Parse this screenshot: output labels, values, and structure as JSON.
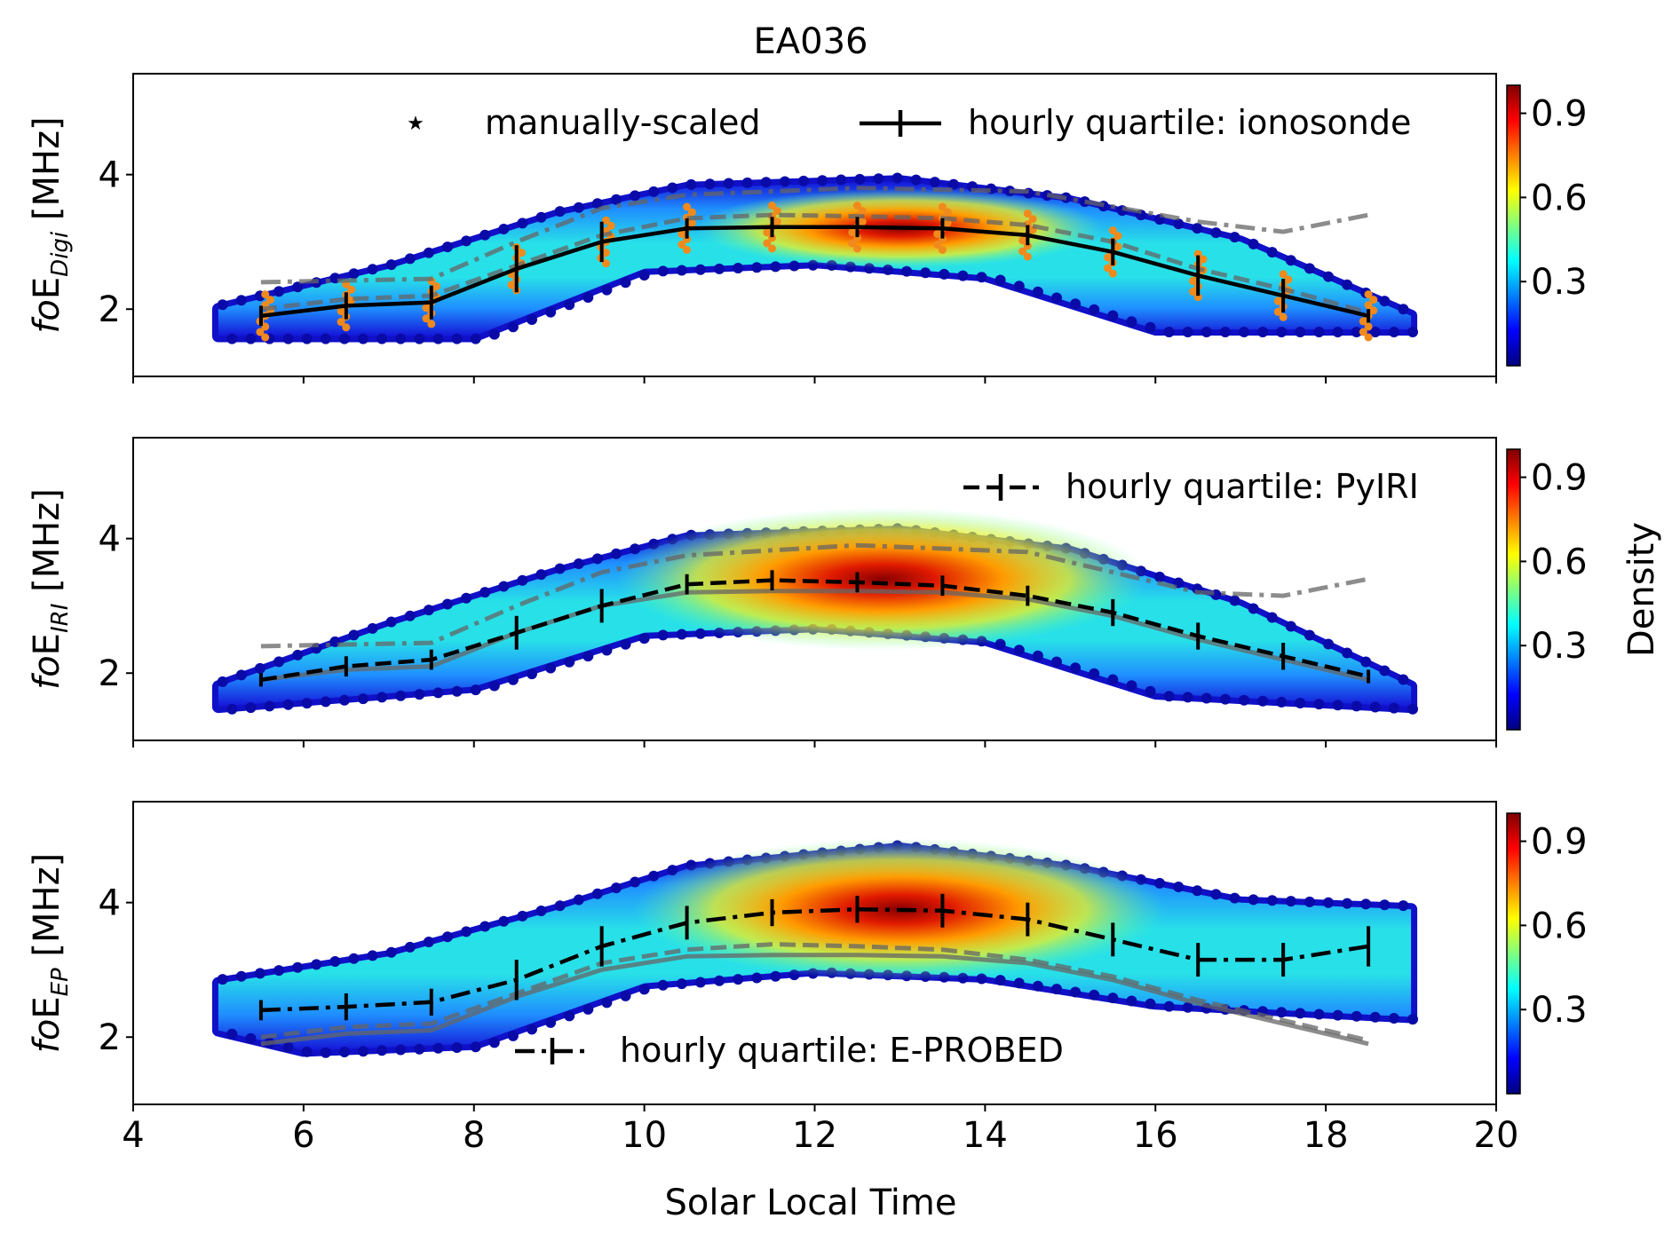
{
  "figure": {
    "title": "EA036",
    "xlabel": "Solar Local Time"
  },
  "colors": {
    "scatter_manual": "#f08a1c",
    "quartile_ionosonde": "#000000",
    "quartile_pyiri": "#000000",
    "quartile_eprobed": "#000000",
    "reference_gray": "#666666"
  },
  "chart_data": [
    {
      "type": "scatter",
      "panel": "top",
      "ylabel": "foE",
      "ylabel_subscript": "Digi",
      "ylabel_unit": "[MHz]",
      "xlim": [
        4,
        20
      ],
      "ylim": [
        1,
        5.5
      ],
      "xticks": [
        4,
        6,
        8,
        10,
        12,
        14,
        16,
        18,
        20
      ],
      "yticks": [
        2,
        4
      ],
      "colorbar": {
        "label": "",
        "ticks": [
          "0.3",
          "0.6",
          "0.9"
        ]
      },
      "legend": [
        "manually-scaled",
        "hourly quartile: ionosonde"
      ],
      "legend_position": "top",
      "series": [
        {
          "name": "hourly quartile: ionosonde",
          "style": "solid",
          "x": [
            5.5,
            6.5,
            7.5,
            8.5,
            9.5,
            10.5,
            11.5,
            12.5,
            13.5,
            14.5,
            15.5,
            16.5,
            17.5,
            18.5
          ],
          "y": [
            1.9,
            2.05,
            2.1,
            2.6,
            3.0,
            3.2,
            3.22,
            3.22,
            3.2,
            3.1,
            2.85,
            2.5,
            2.2,
            1.9
          ],
          "err": [
            0.15,
            0.2,
            0.25,
            0.35,
            0.3,
            0.15,
            0.15,
            0.15,
            0.15,
            0.15,
            0.2,
            0.3,
            0.25,
            0.1
          ]
        }
      ],
      "reference_curves": [
        {
          "style": "dashdot",
          "x": [
            5.5,
            7.5,
            8.5,
            9.5,
            10.5,
            12.5,
            14.5,
            16.5,
            17.5,
            18.5
          ],
          "y": [
            2.4,
            2.45,
            3.0,
            3.5,
            3.7,
            3.8,
            3.75,
            3.3,
            3.15,
            3.4
          ]
        },
        {
          "style": "dashed",
          "x": [
            5.5,
            6.5,
            7.5,
            8.5,
            9.5,
            10.5,
            11.5,
            12.5,
            13.5,
            14.5,
            15.5,
            16.5,
            17.5,
            18.5
          ],
          "y": [
            2.0,
            2.15,
            2.2,
            2.65,
            3.1,
            3.35,
            3.4,
            3.38,
            3.35,
            3.25,
            3.0,
            2.6,
            2.3,
            1.95
          ]
        }
      ],
      "density": {
        "lower": [
          [
            5.0,
            1.6
          ],
          [
            8.0,
            1.6
          ],
          [
            10.0,
            2.6
          ],
          [
            12.0,
            2.7
          ],
          [
            14.0,
            2.5
          ],
          [
            16.0,
            1.7
          ],
          [
            19.0,
            1.7
          ]
        ],
        "upper": [
          [
            5.0,
            2.0
          ],
          [
            7.0,
            2.6
          ],
          [
            9.0,
            3.4
          ],
          [
            10.5,
            3.8
          ],
          [
            13.0,
            3.9
          ],
          [
            15.0,
            3.6
          ],
          [
            17.0,
            3.0
          ],
          [
            19.0,
            1.9
          ]
        ],
        "peak": [
          13.0,
          3.2
        ]
      }
    },
    {
      "type": "scatter",
      "panel": "middle",
      "ylabel": "foE",
      "ylabel_subscript": "IRI",
      "ylabel_unit": "[MHz]",
      "xlim": [
        4,
        20
      ],
      "ylim": [
        1,
        5.5
      ],
      "xticks": [
        4,
        6,
        8,
        10,
        12,
        14,
        16,
        18,
        20
      ],
      "yticks": [
        2,
        4
      ],
      "colorbar": {
        "label": "Density",
        "ticks": [
          "0.3",
          "0.6",
          "0.9"
        ]
      },
      "legend": [
        "hourly quartile: PyIRI"
      ],
      "legend_position": "upper right",
      "series": [
        {
          "name": "hourly quartile: PyIRI",
          "style": "dashed",
          "x": [
            5.5,
            6.5,
            7.5,
            8.5,
            9.5,
            10.5,
            11.5,
            12.5,
            13.5,
            14.5,
            15.5,
            16.5,
            17.5,
            18.5
          ],
          "y": [
            1.9,
            2.1,
            2.2,
            2.6,
            3.0,
            3.32,
            3.38,
            3.35,
            3.3,
            3.15,
            2.9,
            2.55,
            2.25,
            1.95
          ],
          "err": [
            0.1,
            0.15,
            0.15,
            0.25,
            0.25,
            0.15,
            0.15,
            0.15,
            0.15,
            0.15,
            0.2,
            0.2,
            0.2,
            0.1
          ]
        }
      ],
      "reference_curves": [
        {
          "style": "dashdot",
          "x": [
            5.5,
            7.5,
            8.5,
            9.5,
            10.5,
            12.5,
            14.5,
            16.5,
            17.5,
            18.5
          ],
          "y": [
            2.4,
            2.45,
            3.0,
            3.5,
            3.75,
            3.9,
            3.8,
            3.2,
            3.15,
            3.4
          ]
        },
        {
          "style": "solid",
          "x": [
            5.5,
            6.5,
            7.5,
            8.5,
            9.5,
            10.5,
            11.5,
            12.5,
            13.5,
            14.5,
            15.5,
            16.5,
            17.5,
            18.5
          ],
          "y": [
            1.9,
            2.05,
            2.1,
            2.6,
            3.0,
            3.2,
            3.22,
            3.22,
            3.2,
            3.1,
            2.85,
            2.5,
            2.2,
            1.9
          ]
        }
      ],
      "density": {
        "lower": [
          [
            5.0,
            1.5
          ],
          [
            8.0,
            1.8
          ],
          [
            10.0,
            2.6
          ],
          [
            12.0,
            2.7
          ],
          [
            14.0,
            2.5
          ],
          [
            16.0,
            1.7
          ],
          [
            19.0,
            1.5
          ]
        ],
        "upper": [
          [
            5.0,
            1.8
          ],
          [
            7.0,
            2.7
          ],
          [
            9.0,
            3.5
          ],
          [
            10.5,
            4.0
          ],
          [
            13.0,
            4.1
          ],
          [
            15.0,
            3.8
          ],
          [
            17.0,
            3.0
          ],
          [
            19.0,
            1.8
          ]
        ],
        "peak": [
          12.8,
          3.4
        ]
      }
    },
    {
      "type": "scatter",
      "panel": "bottom",
      "ylabel": "foE",
      "ylabel_subscript": "EP",
      "ylabel_unit": "[MHz]",
      "xlim": [
        4,
        20
      ],
      "ylim": [
        1,
        5.5
      ],
      "xticks": [
        4,
        6,
        8,
        10,
        12,
        14,
        16,
        18,
        20
      ],
      "yticks": [
        2,
        4
      ],
      "xlabel": "Solar Local Time",
      "colorbar": {
        "label": "",
        "ticks": [
          "0.3",
          "0.6",
          "0.9"
        ]
      },
      "legend": [
        "hourly quartile: E-PROBED"
      ],
      "legend_position": "lower center",
      "series": [
        {
          "name": "hourly quartile: E-PROBED",
          "style": "dashdot",
          "x": [
            5.5,
            6.5,
            7.5,
            8.5,
            9.5,
            10.5,
            11.5,
            12.5,
            13.5,
            14.5,
            15.5,
            16.5,
            17.5,
            18.5
          ],
          "y": [
            2.4,
            2.45,
            2.52,
            2.85,
            3.35,
            3.7,
            3.85,
            3.9,
            3.88,
            3.75,
            3.45,
            3.15,
            3.15,
            3.35
          ],
          "err": [
            0.15,
            0.2,
            0.2,
            0.3,
            0.3,
            0.25,
            0.2,
            0.2,
            0.25,
            0.25,
            0.25,
            0.25,
            0.25,
            0.3
          ]
        }
      ],
      "reference_curves": [
        {
          "style": "solid",
          "x": [
            5.5,
            6.5,
            7.5,
            8.5,
            9.5,
            10.5,
            11.5,
            12.5,
            13.5,
            14.5,
            15.5,
            16.5,
            17.5,
            18.5
          ],
          "y": [
            1.9,
            2.05,
            2.1,
            2.6,
            3.0,
            3.2,
            3.22,
            3.22,
            3.2,
            3.1,
            2.85,
            2.5,
            2.2,
            1.9
          ]
        },
        {
          "style": "dashed",
          "x": [
            5.5,
            6.5,
            7.5,
            8.5,
            9.5,
            10.5,
            11.5,
            12.5,
            13.5,
            14.5,
            15.5,
            16.5,
            17.5,
            18.5
          ],
          "y": [
            2.0,
            2.15,
            2.2,
            2.65,
            3.1,
            3.3,
            3.38,
            3.35,
            3.3,
            3.15,
            2.9,
            2.55,
            2.25,
            1.95
          ]
        }
      ],
      "density": {
        "lower": [
          [
            5.0,
            2.1
          ],
          [
            6.0,
            1.8
          ],
          [
            8.0,
            1.9
          ],
          [
            10.0,
            2.8
          ],
          [
            12.0,
            3.0
          ],
          [
            14.0,
            2.9
          ],
          [
            16.0,
            2.5
          ],
          [
            19.0,
            2.3
          ]
        ],
        "upper": [
          [
            5.0,
            2.8
          ],
          [
            7.0,
            3.2
          ],
          [
            9.0,
            3.9
          ],
          [
            10.5,
            4.5
          ],
          [
            13.0,
            4.8
          ],
          [
            15.0,
            4.5
          ],
          [
            17.0,
            4.0
          ],
          [
            19.0,
            3.9
          ]
        ],
        "peak": [
          13.0,
          3.9
        ]
      }
    }
  ]
}
